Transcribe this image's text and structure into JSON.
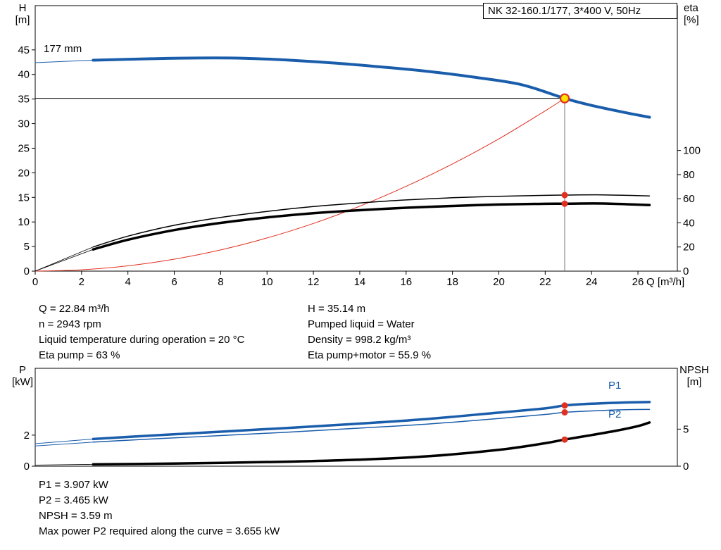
{
  "header": {
    "title": "NK 32-160.1/177, 3*400 V, 50Hz"
  },
  "labels": {
    "h_axis": "H",
    "h_unit": "[m]",
    "eta_axis": "eta",
    "eta_unit": "[%]",
    "q_axis": "Q [m³/h]",
    "p_axis": "P",
    "p_unit": "[kW]",
    "npsh_axis": "NPSH",
    "npsh_unit": "[m]",
    "impeller": "177 mm",
    "p1": "P1",
    "p2": "P2"
  },
  "info_top_left": [
    "Q = 22.84 m³/h",
    "n = 2943 rpm",
    "Liquid temperature during operation = 20 °C",
    "Eta pump = 63 %"
  ],
  "info_top_right": [
    "H = 35.14 m",
    "Pumped liquid = Water",
    "Density = 998.2 kg/m³",
    "Eta pump+motor = 55.9 %"
  ],
  "info_bottom": [
    "P1 = 3.907 kW",
    "P2 = 3.465 kW",
    "NPSH = 3.59 m",
    "Max power P2 required along the curve = 3.655 kW"
  ],
  "colors": {
    "curve_blue": "#1a5dab",
    "curve_red": "#e03020",
    "curve_black": "#000000",
    "duty_yellow": "#ffe400",
    "grey_line": "#777777"
  },
  "chart_data": [
    {
      "type": "line",
      "title": "NK 32-160.1/177, 3*400 V, 50Hz",
      "xlabel": "Q [m³/h]",
      "ylabel_left": "H [m]",
      "ylabel_right": "eta [%]",
      "xlim": [
        0,
        27.7
      ],
      "x_ticks": [
        0,
        2,
        4,
        6,
        8,
        10,
        12,
        14,
        16,
        18,
        20,
        22,
        24,
        26
      ],
      "show_x_labels": true,
      "y_left": {
        "lim": [
          0,
          54
        ],
        "ticks": [
          0,
          5,
          10,
          15,
          20,
          25,
          30,
          35,
          40,
          45
        ]
      },
      "y_right": {
        "lim": [
          0,
          220
        ],
        "ticks": [
          0,
          20,
          40,
          60,
          80,
          100
        ]
      },
      "duty": {
        "q": 22.84,
        "h": 35.14
      },
      "series": [
        {
          "name": "pump-curve-lead",
          "axis": "left",
          "color": "#1a5dab",
          "width": 1,
          "points": [
            [
              0,
              42.4
            ],
            [
              2.5,
              42.9
            ]
          ]
        },
        {
          "name": "pump-curve-177mm",
          "axis": "left",
          "color": "#1a5dab",
          "width": 4,
          "points": [
            [
              2.5,
              42.9
            ],
            [
              5,
              43.2
            ],
            [
              7,
              43.35
            ],
            [
              9,
              43.3
            ],
            [
              11,
              42.9
            ],
            [
              13,
              42.3
            ],
            [
              15,
              41.5
            ],
            [
              17,
              40.6
            ],
            [
              19,
              39.4
            ],
            [
              21,
              37.9
            ],
            [
              22.84,
              35.14
            ],
            [
              24,
              33.7
            ],
            [
              25.5,
              32.2
            ],
            [
              26.5,
              31.3
            ]
          ]
        },
        {
          "name": "system-curve",
          "axis": "left",
          "color": "#e03020",
          "width": 1,
          "points": [
            [
              0,
              0
            ],
            [
              2,
              0.27
            ],
            [
              4,
              1.08
            ],
            [
              6,
              2.43
            ],
            [
              8,
              4.31
            ],
            [
              10,
              6.74
            ],
            [
              12,
              9.7
            ],
            [
              14,
              13.2
            ],
            [
              16,
              17.25
            ],
            [
              18,
              21.8
            ],
            [
              20,
              26.9
            ],
            [
              22,
              32.6
            ],
            [
              22.84,
              35.14
            ]
          ]
        },
        {
          "name": "eta-pump-lead",
          "axis": "right",
          "color": "#000000",
          "width": 0.8,
          "points": [
            [
              0,
              0
            ],
            [
              2.5,
              20
            ]
          ]
        },
        {
          "name": "eta-pump-curve",
          "axis": "right",
          "color": "#000000",
          "width": 1.5,
          "points": [
            [
              2.5,
              20
            ],
            [
              4,
              29
            ],
            [
              6,
              38
            ],
            [
              8,
              44.5
            ],
            [
              10,
              49.5
            ],
            [
              12,
              53.5
            ],
            [
              14,
              56.5
            ],
            [
              16,
              59
            ],
            [
              18,
              60.8
            ],
            [
              20,
              62
            ],
            [
              22,
              62.8
            ],
            [
              22.84,
              63
            ],
            [
              24.5,
              63.2
            ],
            [
              26.5,
              62.3
            ]
          ]
        },
        {
          "name": "eta-pump-motor-lead",
          "axis": "right",
          "color": "#000000",
          "width": 0.8,
          "points": [
            [
              0,
              0
            ],
            [
              2.5,
              18
            ]
          ]
        },
        {
          "name": "eta-pump-motor-curve",
          "axis": "right",
          "color": "#000000",
          "width": 3.5,
          "points": [
            [
              2.5,
              18
            ],
            [
              4,
              26
            ],
            [
              6,
              34
            ],
            [
              8,
              40
            ],
            [
              10,
              44.5
            ],
            [
              12,
              48
            ],
            [
              14,
              50.5
            ],
            [
              16,
              52.5
            ],
            [
              18,
              54
            ],
            [
              20,
              55.2
            ],
            [
              22,
              55.8
            ],
            [
              22.84,
              55.9
            ],
            [
              24.5,
              56
            ],
            [
              26.5,
              54.8
            ]
          ]
        }
      ],
      "markers": [
        {
          "style": "duty",
          "x": 22.84,
          "v": 35.14,
          "axis": "left",
          "label": "duty-point"
        },
        {
          "style": "dot",
          "x": 22.84,
          "v": 63,
          "axis": "right",
          "label": "eta-pump-point"
        },
        {
          "style": "dot",
          "x": 22.84,
          "v": 55.9,
          "axis": "right",
          "label": "eta-pump-motor-point"
        }
      ]
    },
    {
      "type": "line",
      "title": "Power and NPSH curves",
      "xlabel": "Q [m³/h]",
      "ylabel_left": "P [kW]",
      "ylabel_right": "NPSH [m]",
      "xlim": [
        0,
        27.7
      ],
      "x_ticks": [],
      "show_x_labels": false,
      "y_left": {
        "lim": [
          0,
          6.3
        ],
        "ticks": [
          0,
          2
        ]
      },
      "y_right": {
        "lim": [
          0,
          13.2
        ],
        "ticks": [
          0,
          5
        ]
      },
      "series": [
        {
          "name": "p1-curve-lead",
          "axis": "left",
          "color": "#1a5dab",
          "width": 1,
          "points": [
            [
              0,
              1.45
            ],
            [
              2.5,
              1.75
            ]
          ]
        },
        {
          "name": "p1-curve",
          "axis": "left",
          "color": "#1a5dab",
          "width": 3.5,
          "points": [
            [
              2.5,
              1.75
            ],
            [
              5,
              1.97
            ],
            [
              8,
              2.22
            ],
            [
              11,
              2.47
            ],
            [
              14,
              2.74
            ],
            [
              17,
              3.05
            ],
            [
              20,
              3.45
            ],
            [
              22,
              3.72
            ],
            [
              22.84,
              3.907
            ],
            [
              24,
              4.02
            ],
            [
              25.5,
              4.1
            ],
            [
              26.5,
              4.13
            ]
          ]
        },
        {
          "name": "p2-curve-lead",
          "axis": "left",
          "color": "#1a5dab",
          "width": 1,
          "points": [
            [
              0,
              1.3
            ],
            [
              2.5,
              1.55
            ]
          ]
        },
        {
          "name": "p2-curve",
          "axis": "left",
          "color": "#1a5dab",
          "width": 1.5,
          "points": [
            [
              2.5,
              1.55
            ],
            [
              5,
              1.75
            ],
            [
              8,
              1.97
            ],
            [
              11,
              2.2
            ],
            [
              14,
              2.45
            ],
            [
              17,
              2.72
            ],
            [
              20,
              3.07
            ],
            [
              22,
              3.33
            ],
            [
              22.84,
              3.465
            ],
            [
              24,
              3.56
            ],
            [
              25.5,
              3.64
            ],
            [
              26.5,
              3.655
            ]
          ]
        },
        {
          "name": "npsh-curve-lead",
          "axis": "right",
          "color": "#000000",
          "width": 0.8,
          "points": [
            [
              0,
              0.15
            ],
            [
              2.5,
              0.25
            ]
          ]
        },
        {
          "name": "npsh-curve",
          "axis": "right",
          "color": "#000000",
          "width": 3.5,
          "points": [
            [
              2.5,
              0.25
            ],
            [
              5,
              0.32
            ],
            [
              8,
              0.45
            ],
            [
              11,
              0.62
            ],
            [
              14,
              0.88
            ],
            [
              17,
              1.35
            ],
            [
              20,
              2.2
            ],
            [
              22,
              3.1
            ],
            [
              22.84,
              3.59
            ],
            [
              24,
              4.2
            ],
            [
              25,
              4.75
            ],
            [
              26,
              5.4
            ],
            [
              26.5,
              5.9
            ]
          ]
        }
      ],
      "markers": [
        {
          "style": "dot",
          "x": 22.84,
          "v": 3.907,
          "axis": "left",
          "label": "p1-point"
        },
        {
          "style": "dot",
          "x": 22.84,
          "v": 3.465,
          "axis": "left",
          "label": "p2-point"
        },
        {
          "style": "dot",
          "x": 22.84,
          "v": 3.59,
          "axis": "right",
          "label": "npsh-point"
        }
      ]
    }
  ]
}
